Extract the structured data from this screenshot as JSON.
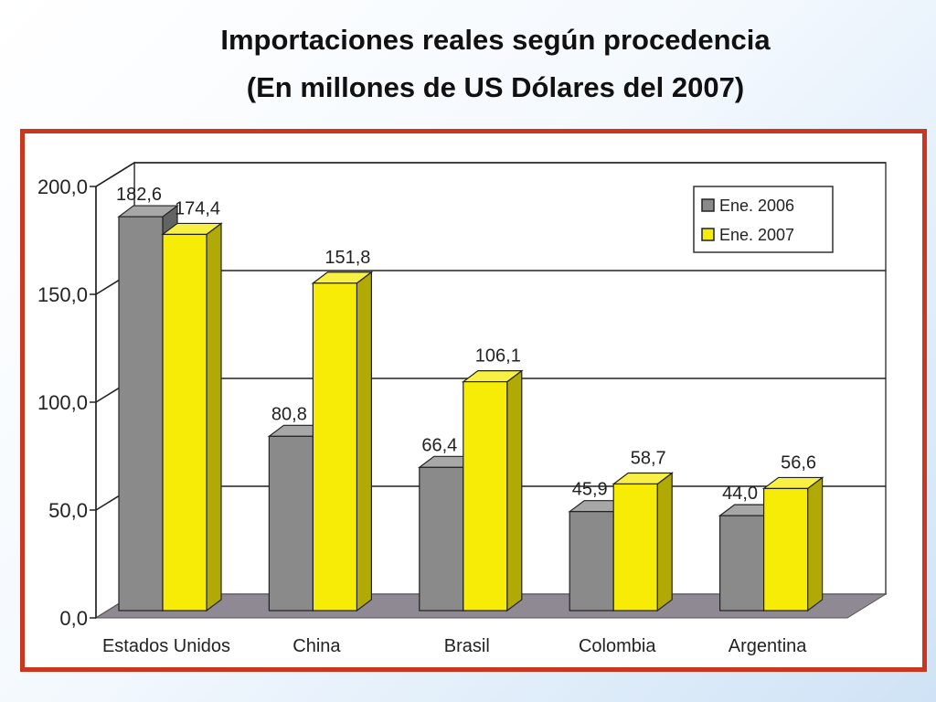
{
  "title_line1": "Importaciones reales según procedencia",
  "title_line2": "(En millones de US Dólares del 2007)",
  "chart_data": {
    "type": "bar",
    "title": "Importaciones reales según procedencia (En millones de US Dólares del 2007)",
    "xlabel": "",
    "ylabel": "",
    "categories": [
      "Estados Unidos",
      "China",
      "Brasil",
      "Colombia",
      "Argentina"
    ],
    "series": [
      {
        "name": "Ene. 2006",
        "values": [
          182.6,
          80.8,
          66.4,
          45.9,
          44.0
        ],
        "labels": [
          "182,6",
          "80,8",
          "66,4",
          "45,9",
          "44,0"
        ],
        "color": "#8a8a8a"
      },
      {
        "name": "Ene. 2007",
        "values": [
          174.4,
          151.8,
          106.1,
          58.7,
          56.6
        ],
        "labels": [
          "174,4",
          "151,8",
          "106,1",
          "58,7",
          "56,6"
        ],
        "color": "#f6ec06"
      }
    ],
    "ylim": [
      0,
      200
    ],
    "yticks": [
      0,
      50,
      100,
      150,
      200
    ],
    "ytick_labels": [
      "0,0",
      "50,0",
      "100,0",
      "150,0",
      "200,0"
    ],
    "grid": true,
    "legend": "top-right",
    "style": "3d"
  }
}
